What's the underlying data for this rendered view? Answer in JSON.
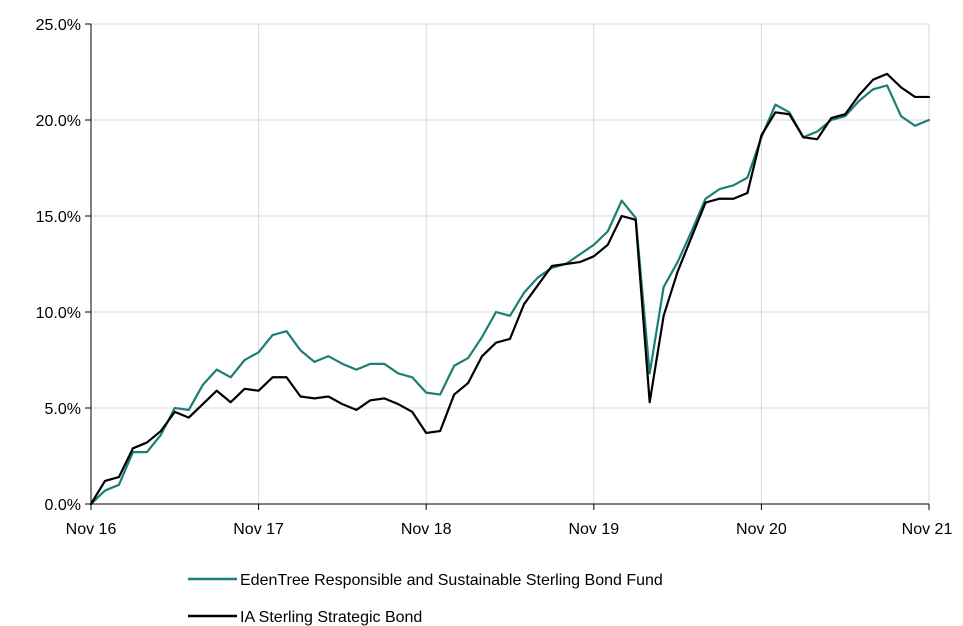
{
  "chart_data": {
    "type": "line",
    "title": "",
    "xlabel": "",
    "ylabel": "",
    "ylim": [
      0,
      25
    ],
    "xlim": [
      0,
      60
    ],
    "y_ticks": [
      "0.0%",
      "5.0%",
      "10.0%",
      "15.0%",
      "20.0%",
      "25.0%"
    ],
    "y_tick_values": [
      0,
      5,
      10,
      15,
      20,
      25
    ],
    "x_ticks": [
      "Nov 16",
      "Nov 17",
      "Nov 18",
      "Nov 19",
      "Nov 20",
      "Nov 21"
    ],
    "x_tick_values": [
      0,
      12,
      24,
      36,
      48,
      60
    ],
    "grid": true,
    "legend_position": "bottom",
    "series": [
      {
        "name": "EdenTree Responsible and Sustainable Sterling Bond Fund",
        "color": "#1a7f74",
        "values": [
          0.0,
          0.7,
          1.0,
          2.7,
          2.7,
          3.6,
          5.0,
          4.9,
          6.2,
          7.0,
          6.6,
          7.5,
          7.9,
          8.8,
          9.0,
          8.0,
          7.4,
          7.7,
          7.3,
          7.0,
          7.3,
          7.3,
          6.8,
          6.6,
          5.8,
          5.7,
          7.2,
          7.6,
          8.7,
          10.0,
          9.8,
          11.0,
          11.8,
          12.3,
          12.5,
          13.0,
          13.5,
          14.2,
          15.8,
          14.9,
          6.8,
          11.3,
          12.6,
          14.2,
          15.9,
          16.4,
          16.6,
          17.0,
          19.1,
          20.8,
          20.4,
          19.1,
          19.4,
          20.0,
          20.2,
          21.0,
          21.6,
          21.8,
          20.2,
          19.7,
          20.0
        ]
      },
      {
        "name": "IA Sterling Strategic Bond",
        "color": "#000000",
        "values": [
          0.0,
          1.2,
          1.4,
          2.9,
          3.2,
          3.8,
          4.8,
          4.5,
          5.2,
          5.9,
          5.3,
          6.0,
          5.9,
          6.6,
          6.6,
          5.6,
          5.5,
          5.6,
          5.2,
          4.9,
          5.4,
          5.5,
          5.2,
          4.8,
          3.7,
          3.8,
          5.7,
          6.3,
          7.7,
          8.4,
          8.6,
          10.4,
          11.4,
          12.4,
          12.5,
          12.6,
          12.9,
          13.5,
          15.0,
          14.8,
          5.3,
          9.8,
          12.1,
          13.9,
          15.7,
          15.9,
          15.9,
          16.2,
          19.2,
          20.4,
          20.3,
          19.1,
          19.0,
          20.1,
          20.3,
          21.3,
          22.1,
          22.4,
          21.7,
          21.2,
          21.2
        ]
      }
    ]
  }
}
